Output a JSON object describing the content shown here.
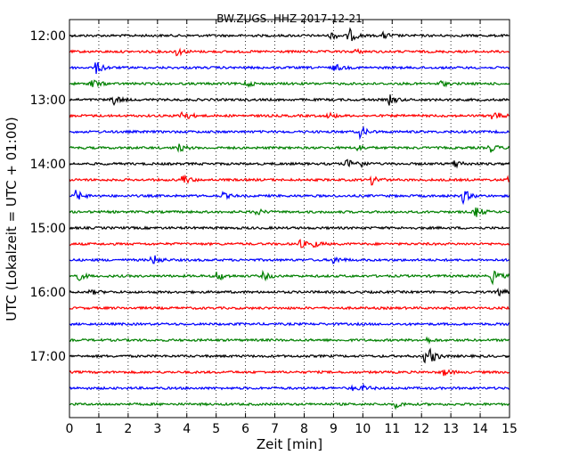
{
  "chart_data": {
    "type": "line",
    "title": "BW.ZUGS..HHZ 2017-12-21",
    "xlabel": "Zeit  [min]",
    "ylabel": "UTC (Lokalzeit = UTC + 01:00)",
    "xlim": [
      0,
      15
    ],
    "x_ticks": [
      "0",
      "1",
      "2",
      "3",
      "4",
      "5",
      "6",
      "7",
      "8",
      "9",
      "10",
      "11",
      "12",
      "13",
      "14",
      "15"
    ],
    "y_ticks": [
      "12:00",
      "13:00",
      "14:00",
      "15:00",
      "16:00",
      "17:00"
    ],
    "grid": "vertical dotted lines at each minute",
    "row_interval_minutes": 15,
    "trace_colors": [
      "#000000",
      "#ff0000",
      "#0000ff",
      "#008000"
    ],
    "traces": [
      {
        "start": "12:00",
        "events": [
          [
            9.5,
            1.0
          ],
          [
            8.9,
            0.5
          ],
          [
            10.7,
            0.4
          ]
        ]
      },
      {
        "start": "12:15",
        "events": [
          [
            3.6,
            0.6
          ],
          [
            9.7,
            0.3
          ]
        ]
      },
      {
        "start": "12:30",
        "events": [
          [
            0.9,
            0.8
          ],
          [
            9.0,
            0.5
          ]
        ]
      },
      {
        "start": "12:45",
        "events": [
          [
            0.7,
            0.8
          ],
          [
            6.0,
            0.4
          ],
          [
            12.6,
            0.4
          ]
        ]
      },
      {
        "start": "13:00",
        "events": [
          [
            1.4,
            0.9
          ],
          [
            10.9,
            0.6
          ]
        ]
      },
      {
        "start": "13:15",
        "events": [
          [
            3.8,
            0.9
          ],
          [
            8.8,
            0.4
          ],
          [
            14.4,
            0.7
          ]
        ]
      },
      {
        "start": "13:30",
        "events": [
          [
            9.9,
            0.7
          ]
        ]
      },
      {
        "start": "13:45",
        "events": [
          [
            3.7,
            0.5
          ],
          [
            9.8,
            0.4
          ],
          [
            14.3,
            0.6
          ]
        ]
      },
      {
        "start": "14:00",
        "events": [
          [
            9.4,
            0.7
          ],
          [
            9.8,
            0.5
          ],
          [
            13.1,
            0.6
          ]
        ]
      },
      {
        "start": "14:15",
        "events": [
          [
            3.8,
            0.8
          ],
          [
            10.3,
            0.6
          ],
          [
            14.9,
            0.4
          ]
        ]
      },
      {
        "start": "14:30",
        "events": [
          [
            0.2,
            0.7
          ],
          [
            5.2,
            0.4
          ],
          [
            13.4,
            0.9
          ]
        ]
      },
      {
        "start": "14:45",
        "events": [
          [
            6.3,
            0.5
          ],
          [
            13.8,
            0.8
          ]
        ]
      },
      {
        "start": "15:00",
        "events": []
      },
      {
        "start": "15:15",
        "events": [
          [
            7.8,
            0.6
          ],
          [
            8.3,
            0.4
          ]
        ]
      },
      {
        "start": "15:30",
        "events": [
          [
            2.8,
            0.8
          ],
          [
            9.0,
            0.5
          ]
        ]
      },
      {
        "start": "15:45",
        "events": [
          [
            0.2,
            0.8
          ],
          [
            5.0,
            0.7
          ],
          [
            6.6,
            0.5
          ],
          [
            14.4,
            0.9
          ]
        ]
      },
      {
        "start": "16:00",
        "events": [
          [
            0.7,
            0.3
          ],
          [
            14.6,
            0.5
          ]
        ]
      },
      {
        "start": "16:15",
        "events": []
      },
      {
        "start": "16:30",
        "events": []
      },
      {
        "start": "16:45",
        "events": [
          [
            12.1,
            0.4
          ]
        ]
      },
      {
        "start": "17:00",
        "events": [
          [
            12.1,
            0.8
          ],
          [
            12.3,
            0.6
          ]
        ]
      },
      {
        "start": "17:15",
        "events": [
          [
            12.7,
            0.5
          ]
        ]
      },
      {
        "start": "17:30",
        "events": [
          [
            9.6,
            0.3
          ],
          [
            10.0,
            0.3
          ]
        ]
      },
      {
        "start": "17:45",
        "events": [
          [
            11.1,
            0.4
          ]
        ]
      }
    ]
  }
}
